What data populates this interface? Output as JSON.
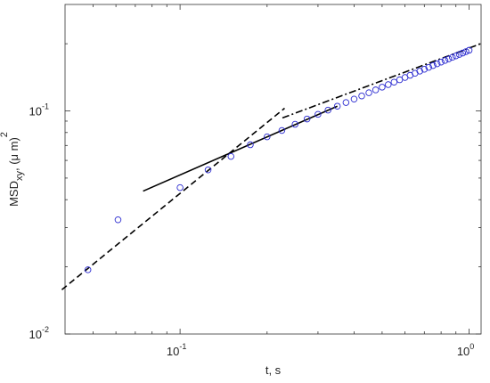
{
  "chart_data": {
    "type": "scatter",
    "log_x": true,
    "log_y": true,
    "xlabel": "t, s",
    "ylabel_parts": [
      {
        "text": "MSD"
      },
      {
        "text": "xy",
        "shift": "sub"
      },
      {
        "text": ", (μ m)"
      },
      {
        "text": "2",
        "shift": "sup"
      }
    ],
    "xlim": [
      0.04,
      1.1
    ],
    "ylim": [
      0.01,
      0.3
    ],
    "xticks": [
      {
        "value": 0.1,
        "label": "10",
        "exponent": "-1"
      },
      {
        "value": 1,
        "label": "10",
        "exponent": "0"
      }
    ],
    "yticks": [
      {
        "value": 0.01,
        "label": "10",
        "exponent": "-2"
      },
      {
        "value": 0.1,
        "label": "10",
        "exponent": "-1"
      }
    ],
    "xminorticks": [
      0.05,
      0.06,
      0.07,
      0.08,
      0.09,
      0.2,
      0.3,
      0.4,
      0.5,
      0.6,
      0.7,
      0.8,
      0.9
    ],
    "yminorticks": [
      0.02,
      0.03,
      0.04,
      0.05,
      0.06,
      0.07,
      0.08,
      0.09,
      0.2
    ],
    "series": [
      {
        "color": "#2a2ad0",
        "x": [
          0.048,
          0.061,
          0.1,
          0.125,
          0.15,
          0.175,
          0.2,
          0.225,
          0.25,
          0.275,
          0.3,
          0.325,
          0.35,
          0.375,
          0.4,
          0.425,
          0.45,
          0.475,
          0.5,
          0.525,
          0.55,
          0.575,
          0.6,
          0.625,
          0.65,
          0.675,
          0.7,
          0.725,
          0.75,
          0.775,
          0.8,
          0.825,
          0.85,
          0.875,
          0.9,
          0.925,
          0.95,
          0.975,
          1.0
        ],
        "values": [
          0.0194,
          0.0325,
          0.0453,
          0.0544,
          0.0625,
          0.0705,
          0.0765,
          0.0817,
          0.0871,
          0.092,
          0.0965,
          0.1008,
          0.105,
          0.109,
          0.113,
          0.1167,
          0.1206,
          0.1242,
          0.1278,
          0.1312,
          0.1346,
          0.1379,
          0.1412,
          0.1444,
          0.1475,
          0.1507,
          0.1537,
          0.1567,
          0.1597,
          0.1626,
          0.1655,
          0.1683,
          0.1711,
          0.1738,
          0.1765,
          0.1791,
          0.1817,
          0.1844,
          0.187
        ]
      }
    ],
    "fit_lines": [
      {
        "style": "dashed",
        "color": "#000000",
        "x": [
          0.039,
          0.23
        ],
        "values": [
          0.0158,
          0.1028
        ]
      },
      {
        "style": "solid",
        "color": "#000000",
        "x": [
          0.0745,
          0.35
        ],
        "values": [
          0.0437,
          0.105
        ]
      },
      {
        "style": "dashdot",
        "color": "#000000",
        "x": [
          0.226,
          1.097
        ],
        "values": [
          0.093,
          0.2
        ]
      }
    ]
  }
}
